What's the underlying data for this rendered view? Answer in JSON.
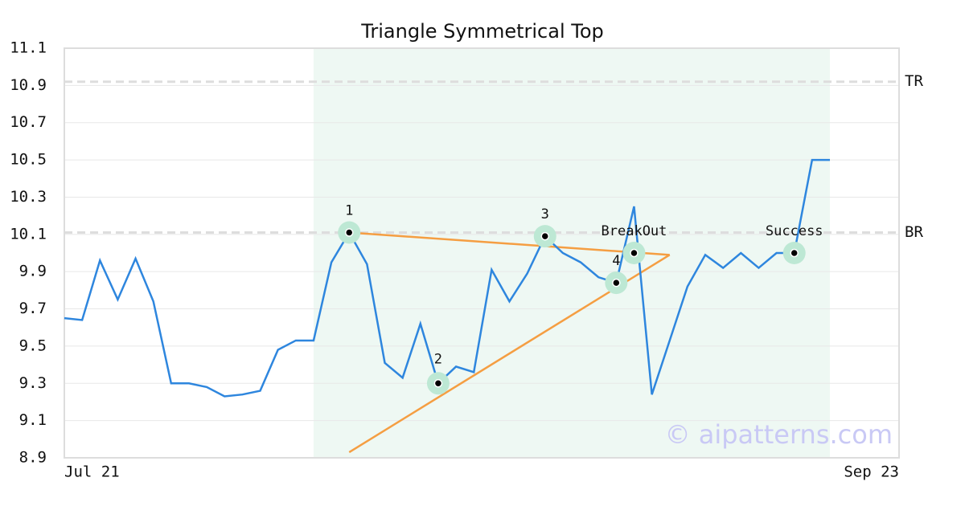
{
  "chart_data": {
    "type": "line",
    "title": "Triangle Symmetrical Top",
    "categories": [
      "Jul 21",
      null,
      null,
      null,
      null,
      null,
      null,
      null,
      null,
      null,
      null,
      null,
      null,
      null,
      null,
      null,
      null,
      null,
      null,
      null,
      null,
      null,
      null,
      null,
      null,
      null,
      null,
      null,
      null,
      null,
      null,
      null,
      null,
      null,
      null,
      null,
      null,
      null,
      null,
      null,
      null,
      null,
      null,
      "Sep 23"
    ],
    "series": [
      {
        "color": "#2e86de",
        "values": [
          9.65,
          9.64,
          9.96,
          9.75,
          9.97,
          9.74,
          9.3,
          9.3,
          9.28,
          9.23,
          9.24,
          9.26,
          9.48,
          9.53,
          9.53,
          9.95,
          10.11,
          9.94,
          9.41,
          9.33,
          9.62,
          9.3,
          9.39,
          9.36,
          9.91,
          9.74,
          9.89,
          10.09,
          10.0,
          9.95,
          9.87,
          9.84,
          10.25,
          9.24,
          9.53,
          9.82,
          9.99,
          9.92,
          10.0,
          9.92,
          10.0,
          10.0,
          10.5,
          10.5
        ]
      }
    ],
    "ylim": [
      8.9,
      11.1
    ],
    "yticks": [
      8.9,
      9.1,
      9.3,
      9.5,
      9.7,
      9.9,
      10.1,
      10.3,
      10.5,
      10.7,
      10.9,
      11.1
    ],
    "grid": true,
    "highlight": {
      "start": 14,
      "end": 43,
      "color": "#eef8f3"
    },
    "reference_lines": [
      {
        "label": "TR",
        "value": 10.92
      },
      {
        "label": "BR",
        "value": 10.11
      }
    ],
    "trendlines": [
      {
        "color": "#f59e42",
        "x": [
          16,
          34
        ],
        "values": [
          10.11,
          9.99
        ]
      },
      {
        "color": "#f59e42",
        "x": [
          16,
          34
        ],
        "values": [
          8.93,
          9.99
        ]
      }
    ],
    "annotations": [
      {
        "label": "1",
        "x": 16,
        "value": 10.11
      },
      {
        "label": "2",
        "x": 21,
        "value": 9.3
      },
      {
        "label": "3",
        "x": 27,
        "value": 10.09
      },
      {
        "label": "4",
        "x": 31,
        "value": 9.84
      },
      {
        "label": "BreakOut",
        "x": 32,
        "value": 10.0
      },
      {
        "label": "Success",
        "x": 41,
        "value": 10.0
      }
    ],
    "watermark": "© aipatterns.com"
  }
}
